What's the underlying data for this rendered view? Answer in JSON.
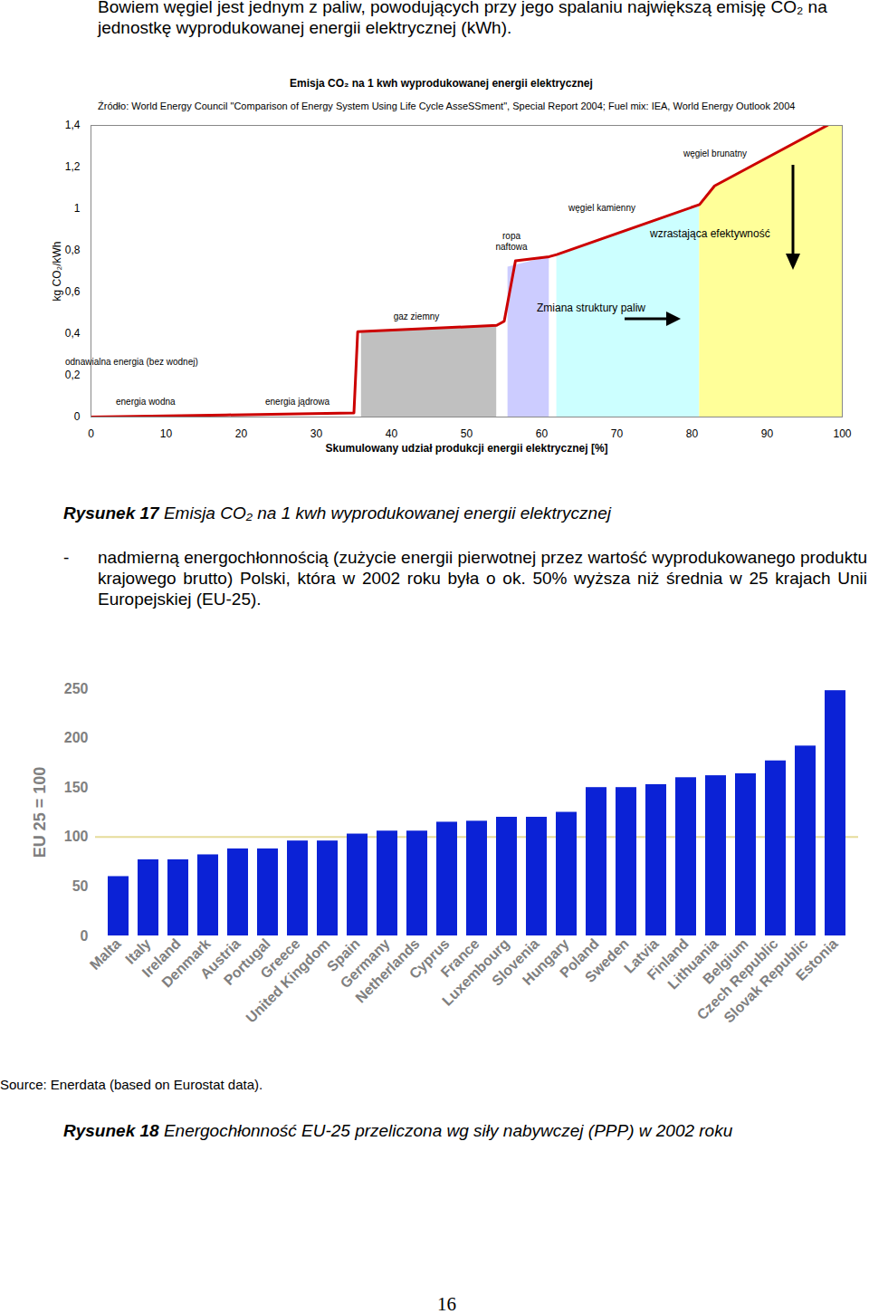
{
  "header_text": "Bowiem węgiel jest jednym z paliw, powodujących przy jego spalaniu największą emisję CO₂ na jednostkę wyprodukowanej energii elektrycznej (kWh).",
  "chart_data": [
    {
      "type": "area",
      "title": "Emisja CO₂ na 1 kwh wyprodukowanej energii elektrycznej",
      "source": "Źródło: World Energy Council \"Comparison of Energy System Using Life Cycle AsseSSment\", Special Report 2004; Fuel mix: IEA, World Energy Outlook 2004",
      "x_label": "Skumulowany udział produkcji energii elektrycznej [%]",
      "y_label": "kg CO₂/kWh",
      "xlim": [
        0,
        100
      ],
      "xticks": [
        0,
        10,
        20,
        30,
        40,
        50,
        60,
        70,
        80,
        90,
        100
      ],
      "ylim": [
        0,
        1.4
      ],
      "yticks": [
        0,
        {
          "value": 0.2,
          "label": "0,2"
        },
        {
          "value": 0.4,
          "label": "0,4"
        },
        {
          "value": 0.6,
          "label": "0,6"
        },
        {
          "value": 0.8,
          "label": "0,8"
        },
        1,
        {
          "value": 1.2,
          "label": "1,2"
        },
        {
          "value": 1.4,
          "label": "1,4"
        }
      ],
      "series": [
        {
          "name": "gaz ziemny",
          "color": "#c0c0c0",
          "x": [
            36,
            54
          ],
          "values": [
            0.41,
            0.44
          ]
        },
        {
          "name": "ropa naftowa",
          "color": "#ccccff",
          "x": [
            55.5,
            61
          ],
          "values": [
            0.72,
            0.77
          ]
        },
        {
          "name": "węgiel kamienny",
          "color": "#ccffff",
          "x": [
            62,
            81
          ],
          "values": [
            0.77,
            1.02
          ]
        },
        {
          "name": "węgiel brunatny",
          "color": "#ffff99",
          "x": [
            81,
            83,
            98,
            100
          ],
          "values": [
            1.02,
            1.11,
            1.4,
            1.4
          ]
        }
      ],
      "line": {
        "color": "#cc0000",
        "x": [
          0,
          18,
          35,
          35.5,
          54,
          55,
          56.5,
          61,
          62,
          81,
          83,
          98
        ],
        "values": [
          0,
          0.01,
          0.02,
          0.41,
          0.44,
          0.46,
          0.75,
          0.77,
          0.78,
          1.02,
          1.11,
          1.4
        ]
      },
      "annotations": [
        "odnawialna energia (bez wodnej)",
        "energia wodna",
        "energia jądrowa",
        "Zmiana struktury paliw",
        "wzrastająca efektywność"
      ]
    },
    {
      "type": "bar",
      "y_label": "EU 25 = 100",
      "source": "Source: Enerdata (based on Eurostat data).",
      "categories": [
        "Malta",
        "Italy",
        "Ireland",
        "Denmark",
        "Austria",
        "Portugal",
        "Greece",
        "United Kingdom",
        "Spain",
        "Germany",
        "Netherlands",
        "Cyprus",
        "France",
        "Luxembourg",
        "Slovenia",
        "Hungary",
        "Poland",
        "Sweden",
        "Latvia",
        "Finland",
        "Lithuania",
        "Belgium",
        "Czech Republic",
        "Slovak Republic",
        "Estonia"
      ],
      "values": [
        60,
        77,
        77,
        82,
        88,
        88,
        96,
        96,
        103,
        106,
        106,
        115,
        116,
        120,
        120,
        125,
        150,
        150,
        153,
        160,
        162,
        164,
        177,
        192,
        248
      ],
      "color": "#0b22d6",
      "ylim": [
        0,
        250
      ],
      "yticks": [
        0,
        50,
        100,
        150,
        200,
        250
      ],
      "reference_line": 100
    }
  ],
  "captions": [
    {
      "label": "Rysunek 17",
      "text": "Emisja CO₂ na 1 kwh wyprodukowanej energii elektrycznej"
    },
    {
      "label": "Rysunek 18",
      "text": "Energochłonność EU-25 przeliczona wg siły nabywczej (PPP) w 2002 roku"
    }
  ],
  "paragraph": {
    "marker": "-",
    "text": "nadmierną energochłonnością (zużycie energii pierwotnej przez wartość wyprodukowanego produktu krajowego brutto) Polski, która w 2002 roku była o ok. 50% wyższa niż średnia w 25 krajach Unii Europejskiej (EU-25)."
  },
  "page_number": "16"
}
